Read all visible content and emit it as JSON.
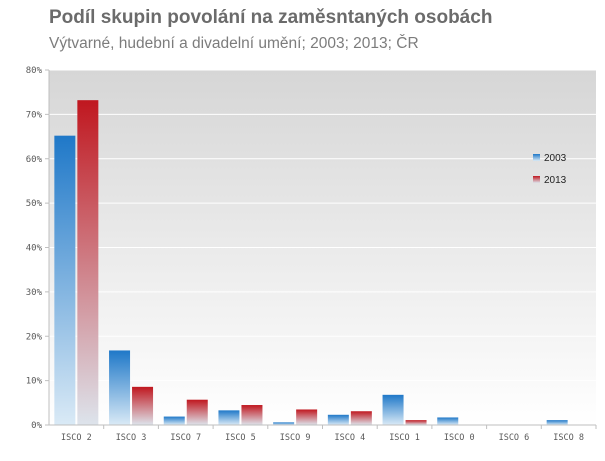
{
  "header": {
    "title": "Podíl skupin povolání na zaměsntaných osobách",
    "subtitle": "Výtvarné, hudební a divadelní umění; 2003; 2013; ČR"
  },
  "colors": {
    "series_2003": "#1f78c8",
    "series_2013": "#c0171f",
    "plot_bg_top": "#d9d9d9",
    "plot_bg_bottom": "#ffffff",
    "grid": "#ffffff"
  },
  "chart_data": {
    "type": "bar",
    "title": "Podíl skupin povolání na zaměsntaných osobách",
    "subtitle": "Výtvarné, hudební a divadelní umění; 2003; 2013; ČR",
    "xlabel": "",
    "ylabel": "",
    "categories": [
      "ISCO 2",
      "ISCO 3",
      "ISCO 7",
      "ISCO 5",
      "ISCO 9",
      "ISCO 4",
      "ISCO 1",
      "ISCO 0",
      "ISCO 6",
      "ISCO 8"
    ],
    "series": [
      {
        "name": "2003",
        "values": [
          65.2,
          16.8,
          1.9,
          3.3,
          0.6,
          2.3,
          6.8,
          1.7,
          0.0,
          1.1
        ]
      },
      {
        "name": "2013",
        "values": [
          73.2,
          8.6,
          5.7,
          4.5,
          3.5,
          3.1,
          1.1,
          0.0,
          0.0,
          0.0
        ]
      }
    ],
    "ylim": [
      0,
      80
    ],
    "yticks": [
      "0%",
      "10%",
      "20%",
      "30%",
      "40%",
      "50%",
      "60%",
      "70%",
      "80%"
    ],
    "grid": true,
    "legend": "right"
  }
}
